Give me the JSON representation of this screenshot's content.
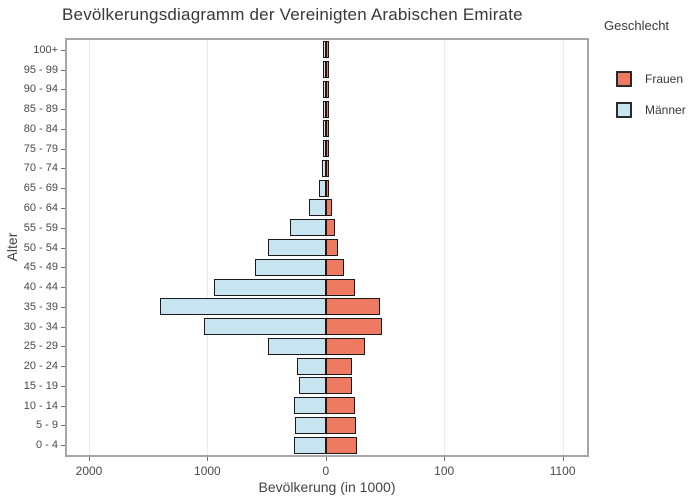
{
  "title": "Bevölkerungsdiagramm der Vereinigten Arabischen Emirate",
  "legend": {
    "title": "Geschlecht",
    "items": [
      {
        "label": "Frauen",
        "color": "#ee7a62"
      },
      {
        "label": "Männer",
        "color": "#c6e5f1"
      }
    ]
  },
  "chart_data": {
    "type": "bar",
    "subtype": "population-pyramid",
    "title": "Bevölkerungsdiagramm der Vereinigten Arabischen Emirate",
    "xlabel": "Bevölkerung (in 1000)",
    "ylabel": "Alter",
    "legend_position": "right",
    "grid": true,
    "categories_top_to_bottom": [
      "100+",
      "95 - 99",
      "90 - 94",
      "85 - 89",
      "80 - 84",
      "75 - 79",
      "70 - 74",
      "65 - 69",
      "60 - 64",
      "55 - 59",
      "50 - 54",
      "45 - 49",
      "40 - 44",
      "35 - 39",
      "30 - 34",
      "25 - 29",
      "20 - 24",
      "15 - 19",
      "10 - 14",
      "5 - 9",
      "0 - 4"
    ],
    "series": [
      {
        "name": "Männer",
        "side": "left",
        "color": "#c6e5f1",
        "values": [
          1,
          1,
          2,
          3,
          5,
          10,
          28,
          60,
          145,
          299,
          490,
          595,
          945,
          1400,
          1032,
          485,
          243,
          229,
          265,
          256,
          270
        ]
      },
      {
        "name": "Frauen",
        "side": "right",
        "color": "#ee7a62",
        "values": [
          1,
          1,
          1,
          2,
          3,
          6,
          15,
          25,
          54,
          79,
          105,
          153,
          250,
          455,
          475,
          330,
          220,
          225,
          248,
          254,
          263
        ]
      }
    ],
    "x_tick_labels": [
      "2000",
      "1000",
      "0",
      "100",
      "1100"
    ],
    "x_units_per_tick": 1000,
    "bar_border_color": "#1a1a1a",
    "panel_border_color": "#a6a6a6",
    "gridline_color": "#ececec"
  }
}
